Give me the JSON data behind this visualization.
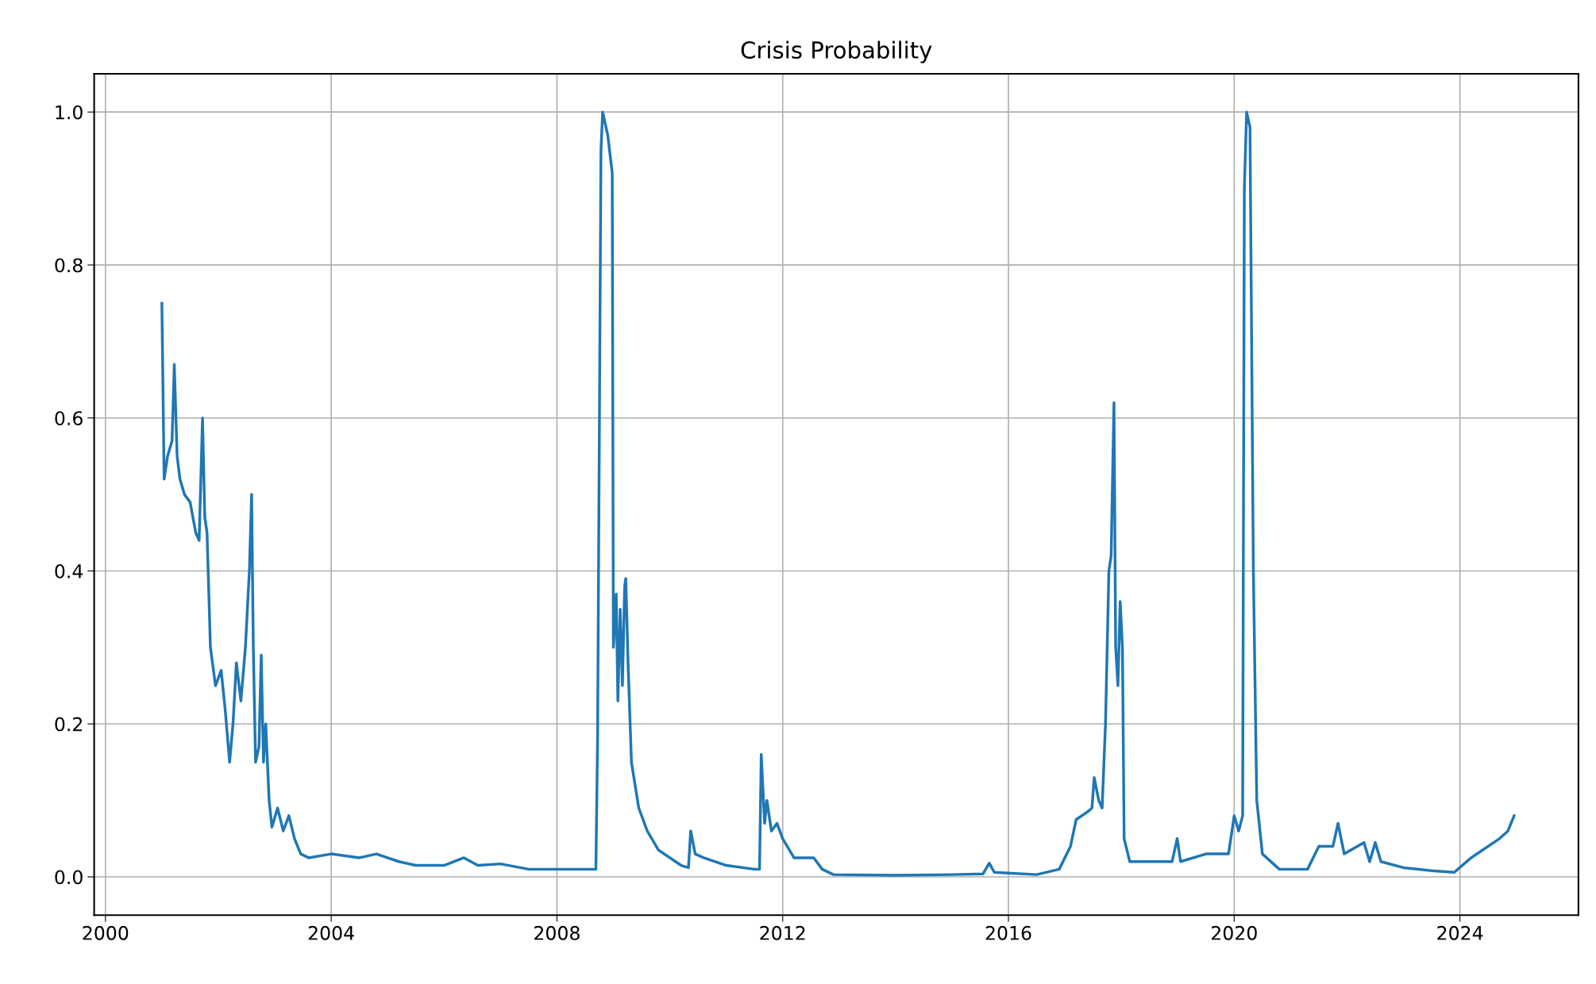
{
  "chart_data": {
    "type": "line",
    "title": "Crisis Probability",
    "x": [
      2001.0,
      2001.04,
      2001.1,
      2001.18,
      2001.22,
      2001.27,
      2001.32,
      2001.4,
      2001.5,
      2001.6,
      2001.66,
      2001.72,
      2001.76,
      2001.8,
      2001.86,
      2001.95,
      2002.05,
      2002.12,
      2002.2,
      2002.26,
      2002.32,
      2002.4,
      2002.48,
      2002.55,
      2002.59,
      2002.62,
      2002.66,
      2002.72,
      2002.76,
      2002.8,
      2002.84,
      2002.9,
      2002.95,
      2003.05,
      2003.15,
      2003.25,
      2003.35,
      2003.46,
      2003.6,
      2004.0,
      2004.5,
      2004.8,
      2005.2,
      2005.5,
      2006.0,
      2006.35,
      2006.6,
      2007.0,
      2007.5,
      2008.0,
      2008.5,
      2008.69,
      2008.72,
      2008.78,
      2008.81,
      2008.9,
      2008.98,
      2009.0,
      2009.05,
      2009.08,
      2009.12,
      2009.16,
      2009.2,
      2009.22,
      2009.26,
      2009.32,
      2009.45,
      2009.6,
      2009.8,
      2010.0,
      2010.2,
      2010.33,
      2010.37,
      2010.45,
      2010.6,
      2011.0,
      2011.5,
      2011.59,
      2011.62,
      2011.68,
      2011.72,
      2011.8,
      2011.9,
      2012.0,
      2012.2,
      2012.55,
      2012.7,
      2012.9,
      2014.0,
      2015.0,
      2015.55,
      2015.66,
      2015.75,
      2016.0,
      2016.5,
      2016.9,
      2017.1,
      2017.2,
      2017.4,
      2017.48,
      2017.52,
      2017.6,
      2017.66,
      2017.72,
      2017.78,
      2017.82,
      2017.87,
      2017.9,
      2017.94,
      2017.98,
      2018.02,
      2018.05,
      2018.15,
      2018.6,
      2018.9,
      2018.99,
      2019.05,
      2019.5,
      2019.9,
      2020.0,
      2020.08,
      2020.15,
      2020.18,
      2020.22,
      2020.28,
      2020.34,
      2020.4,
      2020.5,
      2020.8,
      2021.3,
      2021.5,
      2021.75,
      2021.84,
      2021.95,
      2022.3,
      2022.4,
      2022.5,
      2022.6,
      2023.0,
      2023.5,
      2023.9,
      2024.2,
      2024.4,
      2024.7,
      2024.85,
      2024.96
    ],
    "values": [
      0.75,
      0.52,
      0.55,
      0.57,
      0.67,
      0.55,
      0.52,
      0.5,
      0.49,
      0.45,
      0.44,
      0.6,
      0.47,
      0.45,
      0.3,
      0.25,
      0.27,
      0.22,
      0.15,
      0.2,
      0.28,
      0.23,
      0.3,
      0.4,
      0.5,
      0.3,
      0.15,
      0.17,
      0.29,
      0.15,
      0.2,
      0.1,
      0.065,
      0.09,
      0.06,
      0.08,
      0.05,
      0.03,
      0.025,
      0.03,
      0.025,
      0.03,
      0.02,
      0.015,
      0.015,
      0.025,
      0.015,
      0.017,
      0.01,
      0.01,
      0.01,
      0.01,
      0.18,
      0.95,
      1.0,
      0.97,
      0.92,
      0.3,
      0.37,
      0.23,
      0.35,
      0.25,
      0.38,
      0.39,
      0.28,
      0.15,
      0.09,
      0.06,
      0.035,
      0.025,
      0.015,
      0.012,
      0.06,
      0.03,
      0.025,
      0.015,
      0.01,
      0.01,
      0.16,
      0.07,
      0.1,
      0.06,
      0.07,
      0.05,
      0.025,
      0.025,
      0.01,
      0.003,
      0.002,
      0.003,
      0.004,
      0.018,
      0.006,
      0.005,
      0.003,
      0.01,
      0.04,
      0.075,
      0.085,
      0.09,
      0.13,
      0.1,
      0.09,
      0.2,
      0.4,
      0.42,
      0.62,
      0.3,
      0.25,
      0.36,
      0.3,
      0.05,
      0.02,
      0.02,
      0.02,
      0.05,
      0.02,
      0.03,
      0.03,
      0.08,
      0.06,
      0.08,
      0.9,
      1.0,
      0.98,
      0.4,
      0.1,
      0.03,
      0.01,
      0.01,
      0.04,
      0.04,
      0.07,
      0.03,
      0.045,
      0.02,
      0.045,
      0.02,
      0.012,
      0.008,
      0.006,
      0.025,
      0.035,
      0.05,
      0.06,
      0.08
    ],
    "color": "#1f77b4",
    "xlim": [
      1999.8,
      2026.1
    ],
    "xticks": [
      2000,
      2004,
      2008,
      2012,
      2016,
      2020,
      2024
    ],
    "ylim": [
      -0.05,
      1.05
    ],
    "yticks": [
      {
        "value": 0,
        "label": "0.0"
      },
      {
        "value": 0.2,
        "label": "0.2"
      },
      {
        "value": 0.4,
        "label": "0.4"
      },
      {
        "value": 0.6,
        "label": "0.6"
      },
      {
        "value": 0.8,
        "label": "0.8"
      },
      {
        "value": 1,
        "label": "1.0"
      }
    ],
    "grid": true
  }
}
